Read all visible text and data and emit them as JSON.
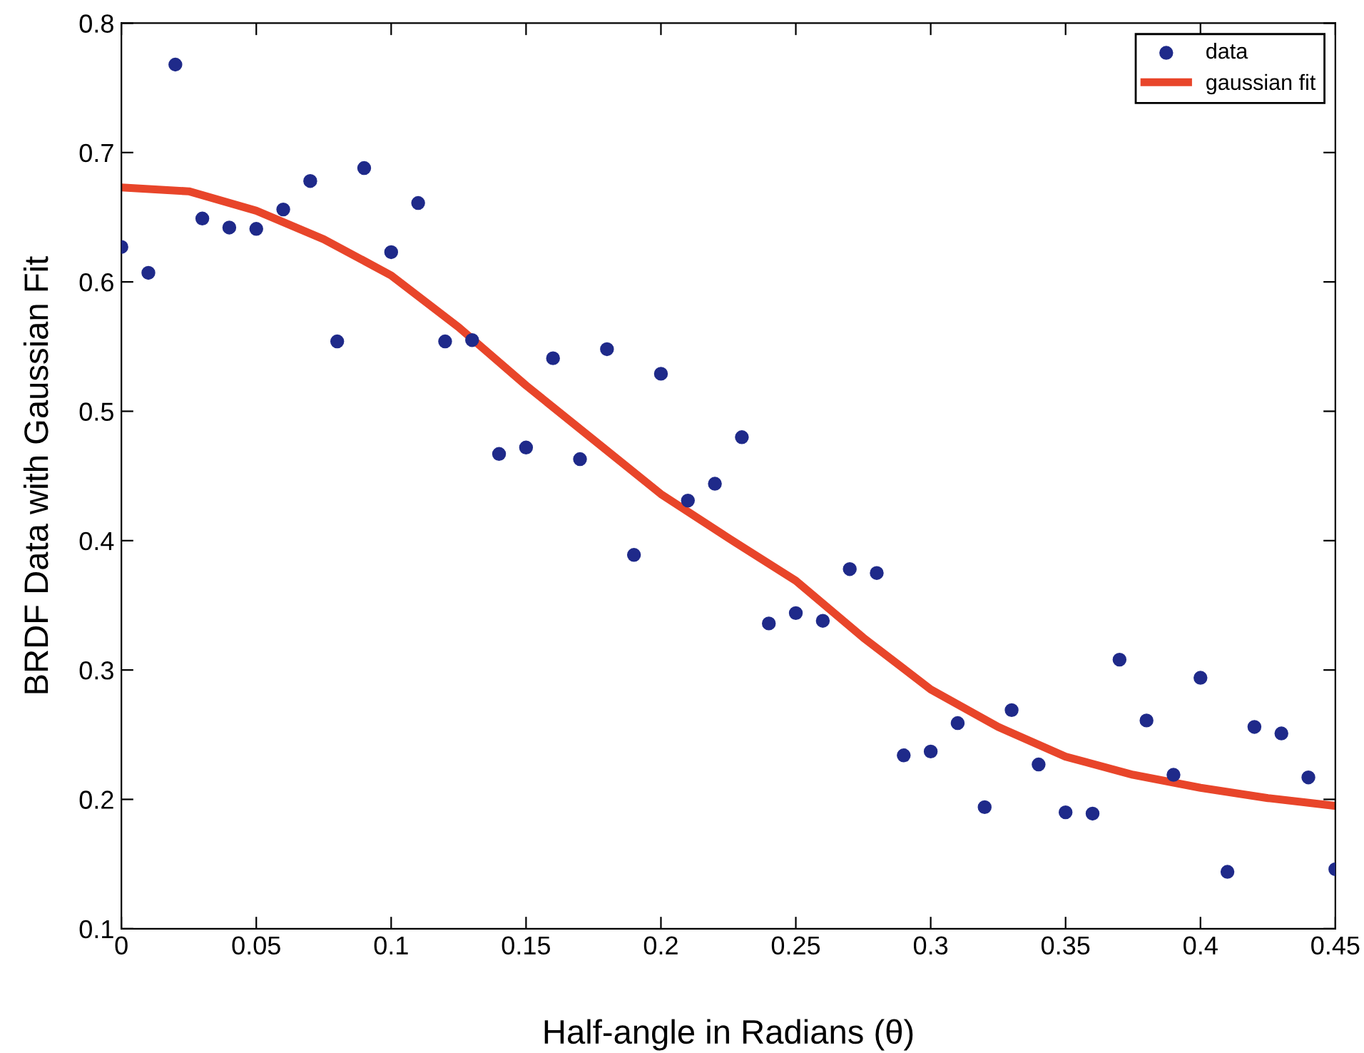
{
  "chart_data": {
    "type": "scatter",
    "xlabel": "Half-angle in Radians (θ)",
    "ylabel": "BRDF Data with Gaussian Fit",
    "xlim": [
      0,
      0.45
    ],
    "ylim": [
      0.1,
      0.8
    ],
    "xticks": [
      0,
      0.05,
      0.1,
      0.15,
      0.2,
      0.25,
      0.3,
      0.35,
      0.4,
      0.45
    ],
    "yticks": [
      0.1,
      0.2,
      0.3,
      0.4,
      0.5,
      0.6,
      0.7,
      0.8
    ],
    "grid": false,
    "legend": "top right",
    "series": [
      {
        "name": "data",
        "marker": "circle",
        "color": "#1f2a8a",
        "x": [
          0,
          0.01,
          0.02,
          0.03,
          0.04,
          0.05,
          0.06,
          0.07,
          0.08,
          0.09,
          0.1,
          0.11,
          0.12,
          0.13,
          0.14,
          0.15,
          0.16,
          0.17,
          0.18,
          0.19,
          0.2,
          0.21,
          0.22,
          0.23,
          0.24,
          0.25,
          0.26,
          0.27,
          0.28,
          0.29,
          0.3,
          0.31,
          0.32,
          0.33,
          0.34,
          0.35,
          0.36,
          0.37,
          0.38,
          0.39,
          0.4,
          0.41,
          0.42,
          0.43,
          0.44,
          0.45
        ],
        "values": [
          0.627,
          0.607,
          0.768,
          0.649,
          0.642,
          0.641,
          0.656,
          0.678,
          0.554,
          0.688,
          0.623,
          0.661,
          0.554,
          0.555,
          0.467,
          0.472,
          0.541,
          0.463,
          0.548,
          0.389,
          0.529,
          0.431,
          0.444,
          0.48,
          0.336,
          0.344,
          0.338,
          0.378,
          0.375,
          0.234,
          0.237,
          0.259,
          0.194,
          0.269,
          0.227,
          0.19,
          0.189,
          0.308,
          0.261,
          0.219,
          0.294,
          0.144,
          0.256,
          0.251,
          0.217,
          0.146
        ]
      },
      {
        "name": "gaussian fit",
        "type": "line",
        "color": "#e8452a",
        "x": [
          0,
          0.025,
          0.05,
          0.075,
          0.1,
          0.125,
          0.15,
          0.175,
          0.2,
          0.225,
          0.25,
          0.275,
          0.3,
          0.325,
          0.35,
          0.375,
          0.4,
          0.425,
          0.45
        ],
        "values": [
          0.673,
          0.67,
          0.655,
          0.633,
          0.605,
          0.565,
          0.52,
          0.478,
          0.436,
          0.402,
          0.369,
          0.325,
          0.285,
          0.256,
          0.233,
          0.219,
          0.209,
          0.201,
          0.195
        ]
      }
    ]
  }
}
